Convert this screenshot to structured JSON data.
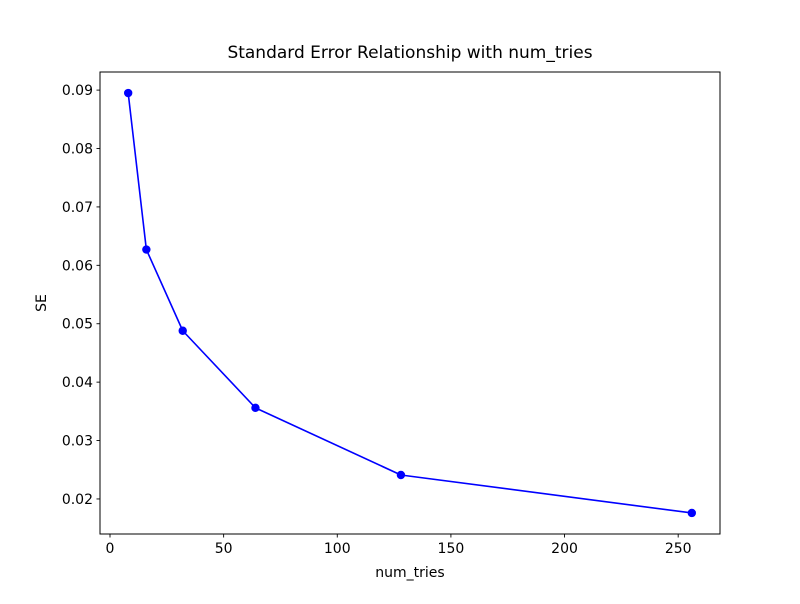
{
  "chart_data": {
    "type": "line",
    "title": "Standard Error Relationship with num_tries",
    "xlabel": "num_tries",
    "ylabel": "SE",
    "series": [
      {
        "name": "SE",
        "x": [
          8,
          16,
          32,
          64,
          128,
          256
        ],
        "y": [
          0.0895,
          0.0627,
          0.0488,
          0.0356,
          0.0241,
          0.0176
        ]
      }
    ],
    "x_ticks": [
      0,
      50,
      100,
      150,
      200,
      250
    ],
    "y_ticks": [
      0.02,
      0.03,
      0.04,
      0.05,
      0.06,
      0.07,
      0.08,
      0.09
    ],
    "y_tick_decimals": 2,
    "xlim": [
      -4.4,
      268.4
    ],
    "ylim": [
      0.014,
      0.0931
    ],
    "grid": false,
    "legend_position": "none",
    "line_color": "#0000ff",
    "marker": "o",
    "marker_color": "#0000ff",
    "axes_color": "#000000",
    "background_color": "#ffffff"
  }
}
